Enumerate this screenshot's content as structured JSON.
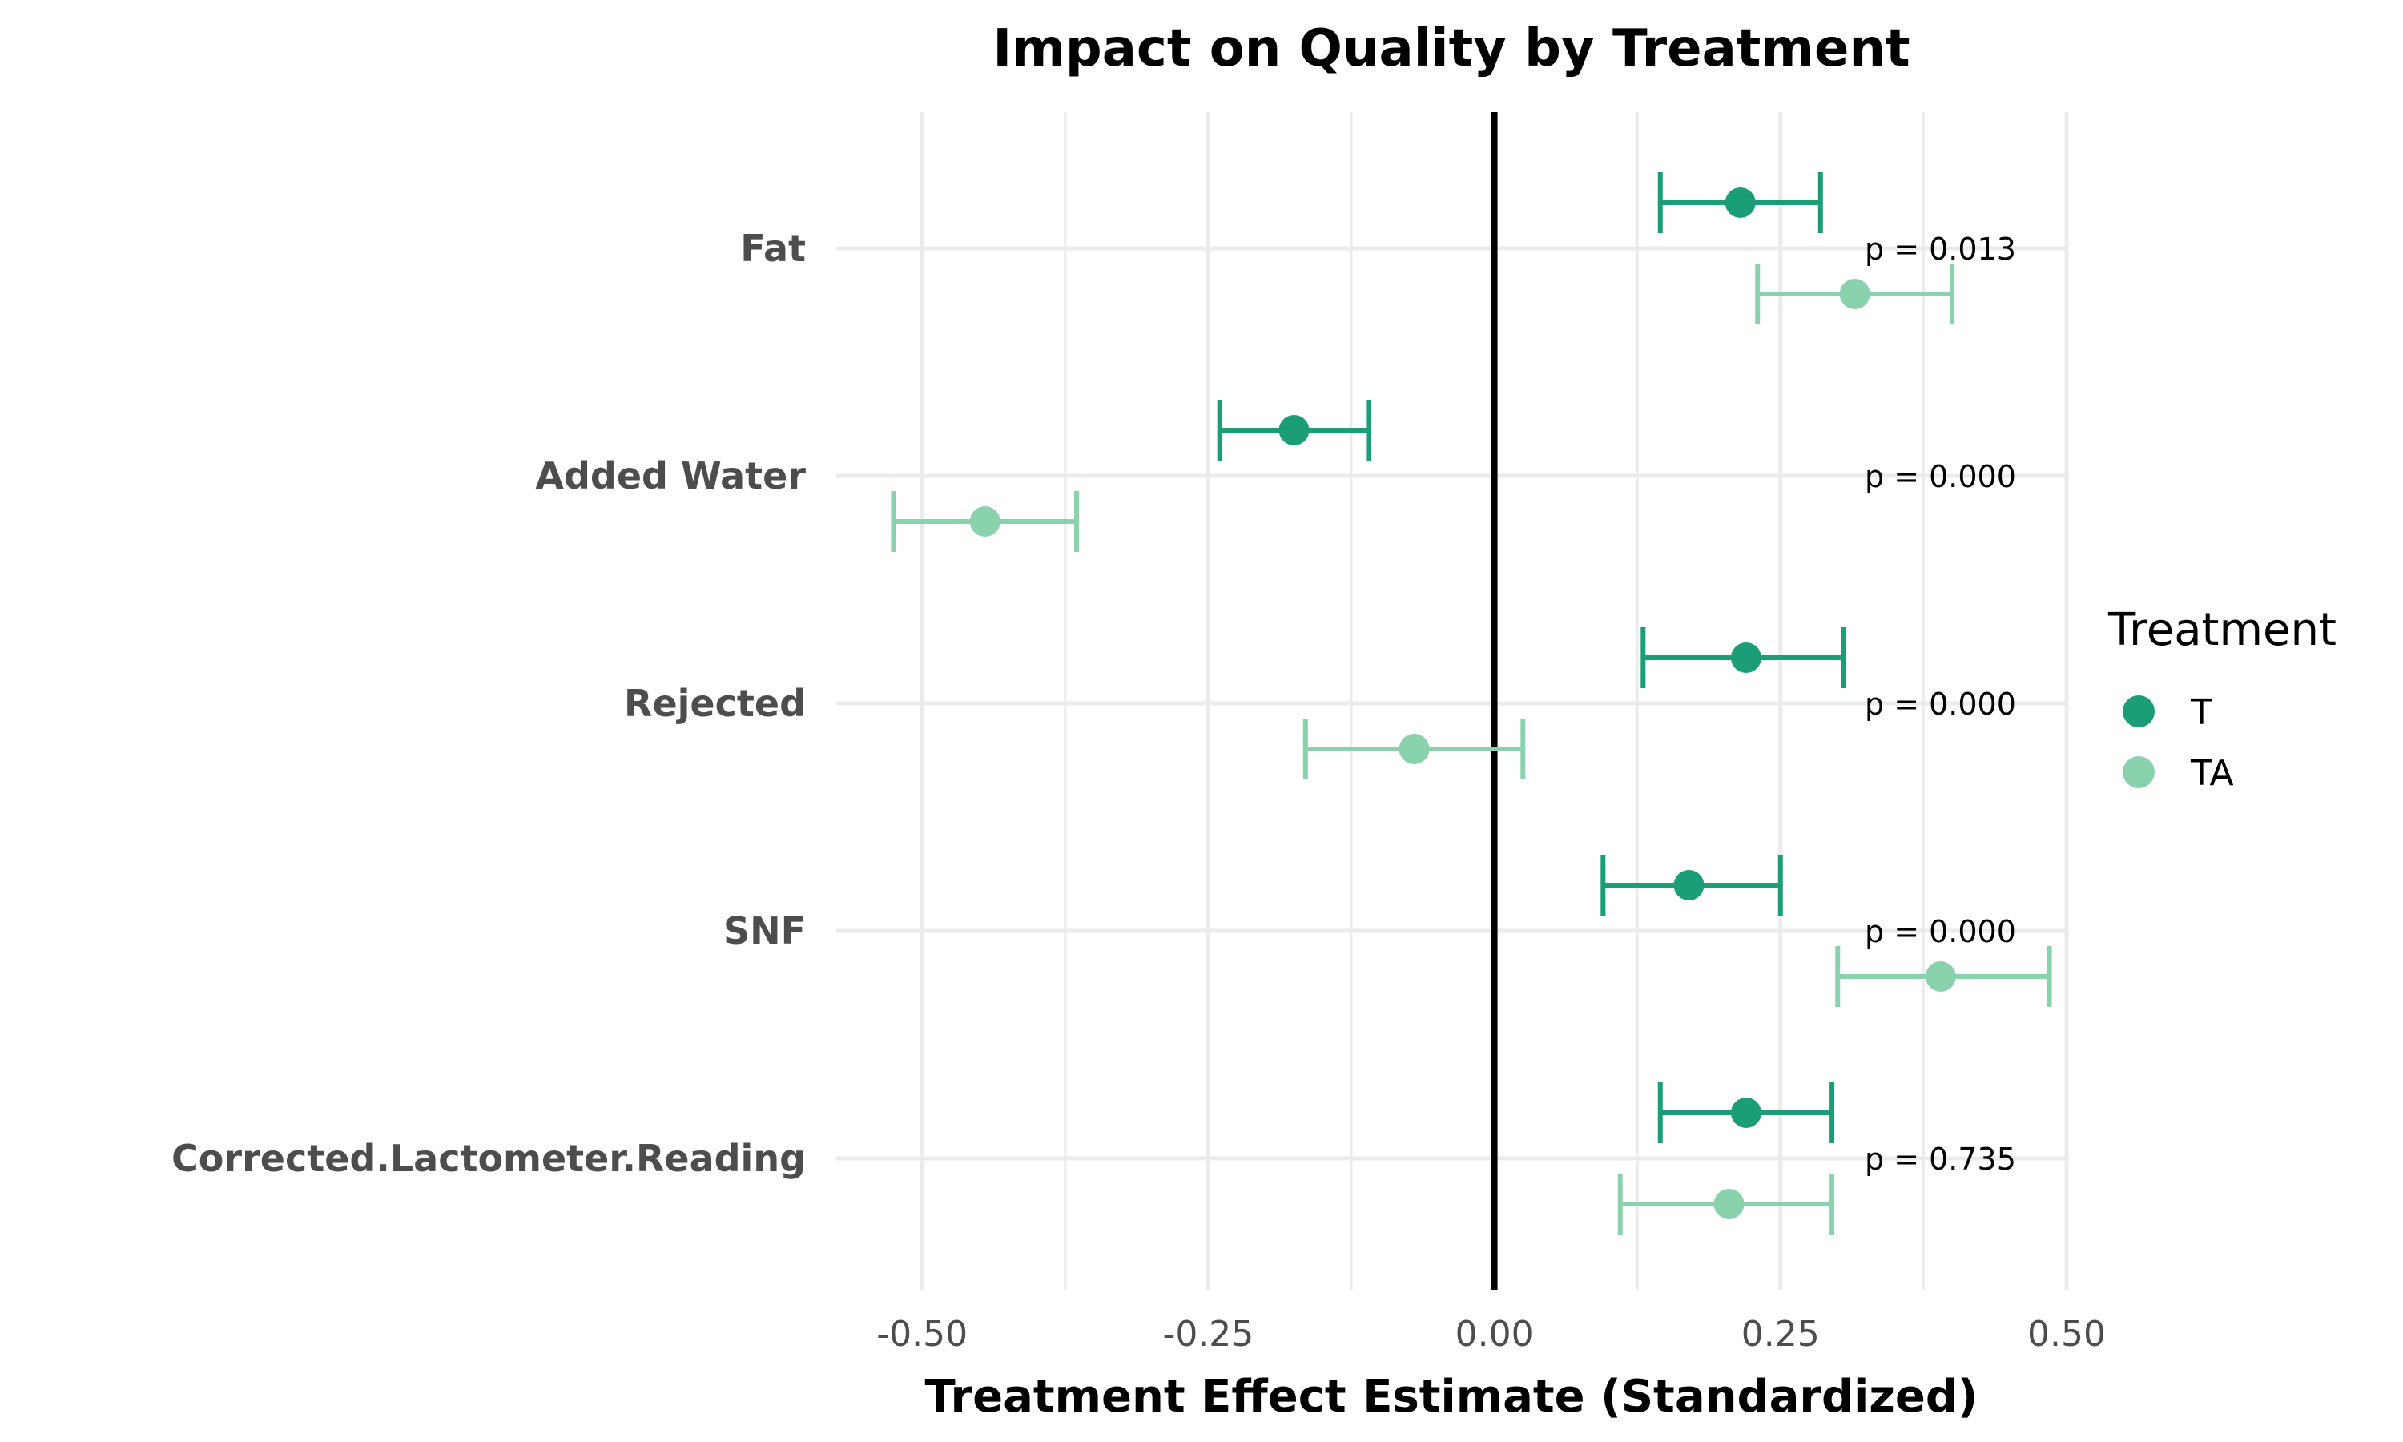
{
  "chart_data": {
    "type": "scatter",
    "title": "Impact on Quality by Treatment",
    "xlabel": "Treatment Effect Estimate (Standardized)",
    "ylabel": "",
    "xlim": [
      -0.575,
      0.5
    ],
    "x_ticks": [
      -0.5,
      -0.25,
      0.0,
      0.25,
      0.5
    ],
    "x_tick_labels": [
      "-0.50",
      "-0.25",
      "0.00",
      "0.25",
      "0.50"
    ],
    "grid": true,
    "reference_line": 0,
    "categories": [
      "Fat",
      "Added Water",
      "Rejected",
      "SNF",
      "Corrected.Lactometer.Reading"
    ],
    "p_values": [
      "p = 0.013",
      "p = 0.000",
      "p = 0.000",
      "p = 0.000",
      "p = 0.735"
    ],
    "series": [
      {
        "name": "T",
        "color": "#1b9e77",
        "estimates": [
          0.215,
          -0.175,
          0.22,
          0.17,
          0.22
        ],
        "ci_low": [
          0.145,
          -0.24,
          0.13,
          0.095,
          0.145
        ],
        "ci_high": [
          0.285,
          -0.11,
          0.305,
          0.25,
          0.295
        ]
      },
      {
        "name": "TA",
        "color": "#8ad1ae",
        "estimates": [
          0.315,
          -0.445,
          -0.07,
          0.39,
          0.205
        ],
        "ci_low": [
          0.23,
          -0.525,
          -0.165,
          0.3,
          0.11
        ],
        "ci_high": [
          0.4,
          -0.365,
          0.025,
          0.485,
          0.295
        ]
      }
    ],
    "legend": {
      "title": "Treatment",
      "placement": "right"
    }
  }
}
